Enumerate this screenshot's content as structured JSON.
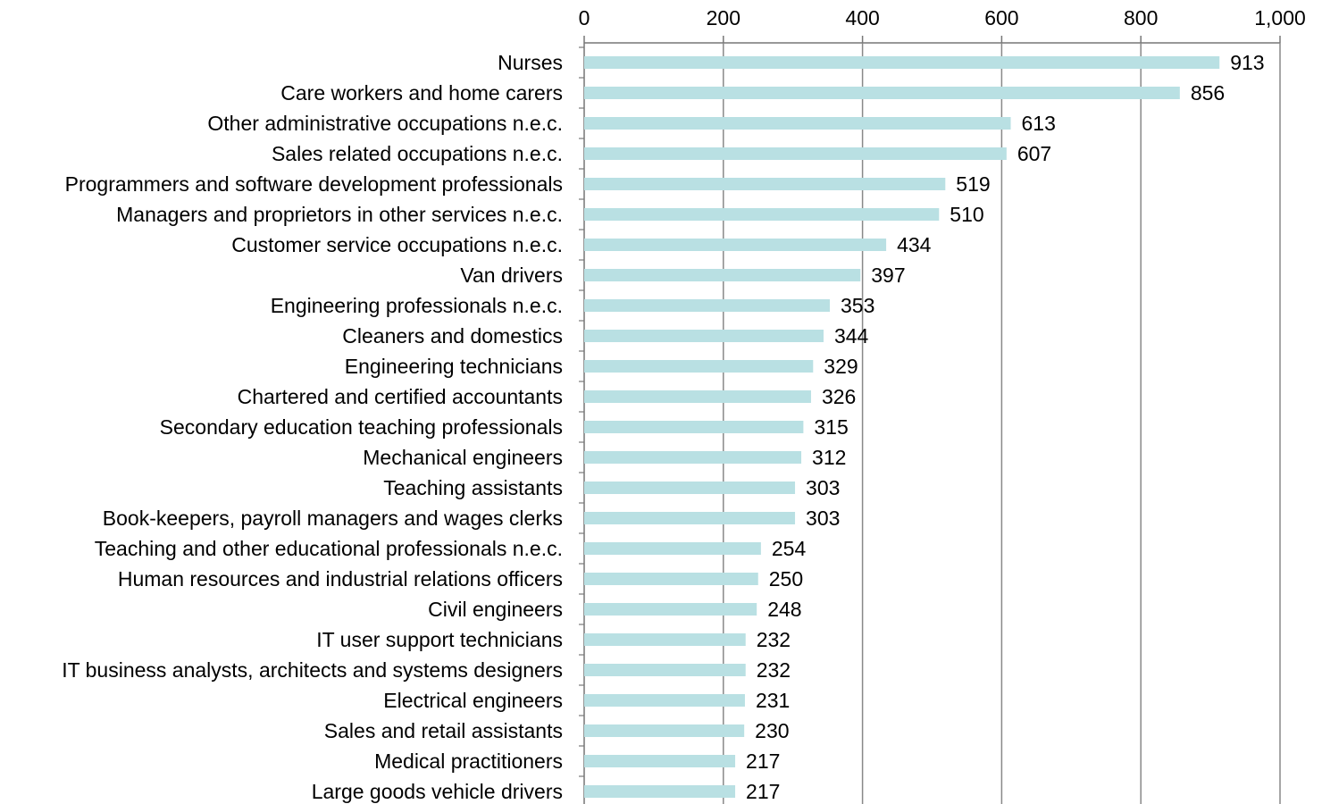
{
  "chart_data": {
    "type": "barh",
    "categories": [
      "Nurses",
      "Care workers and home carers",
      "Other administrative occupations n.e.c.",
      "Sales related occupations n.e.c.",
      "Programmers and software development professionals",
      "Managers and proprietors in other services n.e.c.",
      "Customer service occupations n.e.c.",
      "Van drivers",
      "Engineering professionals n.e.c.",
      "Cleaners and domestics",
      "Engineering technicians",
      "Chartered and certified accountants",
      "Secondary education teaching professionals",
      "Mechanical engineers",
      "Teaching assistants",
      "Book-keepers, payroll managers and wages clerks",
      "Teaching and other educational professionals n.e.c.",
      "Human resources and industrial relations officers",
      "Civil engineers",
      "IT user support technicians",
      "IT business analysts, architects and systems designers",
      "Electrical engineers",
      "Sales and retail assistants",
      "Medical practitioners",
      "Large goods vehicle drivers"
    ],
    "values": [
      913,
      856,
      613,
      607,
      519,
      510,
      434,
      397,
      353,
      344,
      329,
      326,
      315,
      312,
      303,
      303,
      254,
      250,
      248,
      232,
      232,
      231,
      230,
      217,
      217
    ],
    "color": "#b9e0e3",
    "xlim": [
      0,
      1000
    ],
    "xticks": [
      0,
      200,
      400,
      600,
      800,
      {
        "value": 1000,
        "label": "1,000"
      }
    ],
    "grid": true
  }
}
